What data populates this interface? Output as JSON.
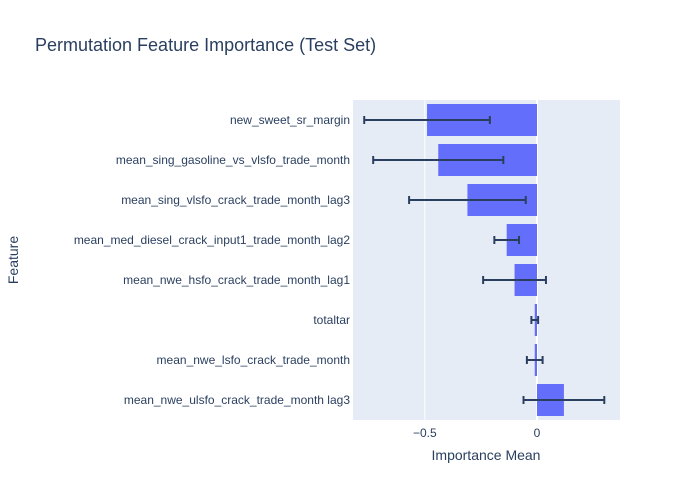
{
  "chart_data": {
    "type": "bar",
    "orientation": "horizontal",
    "title": "Permutation Feature Importance (Test Set)",
    "xlabel": "Importance Mean",
    "ylabel": "Feature",
    "xlim": [
      -0.82,
      0.37
    ],
    "xticks": [
      {
        "value": -0.5,
        "label": "−0.5"
      },
      {
        "value": 0,
        "label": "0"
      }
    ],
    "grid": true,
    "legend": "none",
    "categories": [
      "new_sweet_sr_margin",
      "mean_sing_gasoline_vs_vlsfo_trade_month",
      "mean_sing_vlsfo_crack_trade_month_lag3",
      "mean_med_diesel_crack_input1_trade_month_lag2",
      "mean_nwe_hsfo_crack_trade_month_lag1",
      "totaltar",
      "mean_nwe_lsfo_crack_trade_month",
      "mean_nwe_ulsfo_crack_trade_month lag3"
    ],
    "values": [
      -0.49,
      -0.44,
      -0.31,
      -0.135,
      -0.1,
      -0.01,
      -0.01,
      0.12
    ],
    "errors": [
      0.28,
      0.29,
      0.26,
      0.055,
      0.14,
      0.015,
      0.035,
      0.18
    ],
    "colors": {
      "bar": "#636efa",
      "error": "#2a3f5f",
      "plot_bg": "#e5ecf6",
      "grid": "#ffffff",
      "text": "#2a3f5f"
    }
  }
}
